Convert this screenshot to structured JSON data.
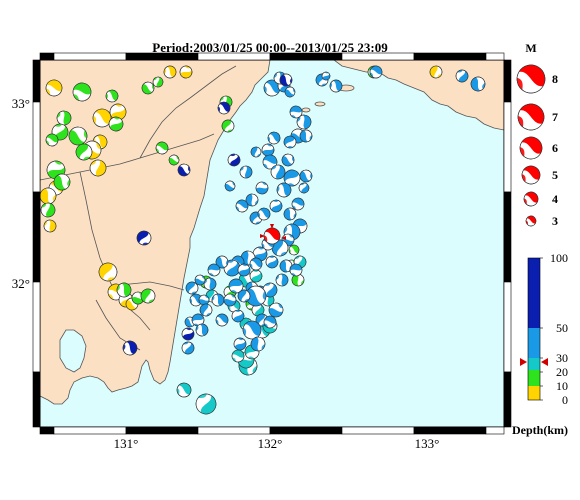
{
  "title": "Period:2003/01/25 00:00--2013/01/25 23:09",
  "colors": {
    "sea": "#dbfdfd",
    "land": "#fbe0c4",
    "coast": "#555555",
    "frame_black": "#000000",
    "frame_white": "#ffffff"
  },
  "map": {
    "lon_labels": [
      "131°",
      "132°",
      "133°"
    ],
    "lat_labels": [
      "33°",
      "32°"
    ]
  },
  "magnitude_legend": {
    "heading": "M",
    "entries": [
      "8",
      "7",
      "6",
      "5",
      "4",
      "3"
    ],
    "color": "#ff0000"
  },
  "depth_scale": {
    "unit_label": "Depth(km)",
    "ticks": [
      "100",
      "50",
      "30",
      "20",
      "10",
      "0"
    ],
    "bands": [
      {
        "range": "0-10",
        "color": "#ffd400"
      },
      {
        "range": "10-20",
        "color": "#2ee31d"
      },
      {
        "range": "20-30",
        "color": "#16c9c9"
      },
      {
        "range": "30-50",
        "color": "#1a99e6"
      },
      {
        "range": "50-100",
        "color": "#0a1fb0"
      }
    ]
  },
  "events_by_color": {
    "yellow": {
      "color": "#ffd400",
      "count": 16
    },
    "green": {
      "color": "#2ee31d",
      "count": 27
    },
    "teal": {
      "color": "#16c9c9",
      "count": 16
    },
    "blue": {
      "color": "#1a99e6",
      "count": 78
    },
    "darkblue": {
      "color": "#0a1fb0",
      "count": 7
    },
    "red": {
      "color": "#ff0000",
      "count": 1
    }
  }
}
